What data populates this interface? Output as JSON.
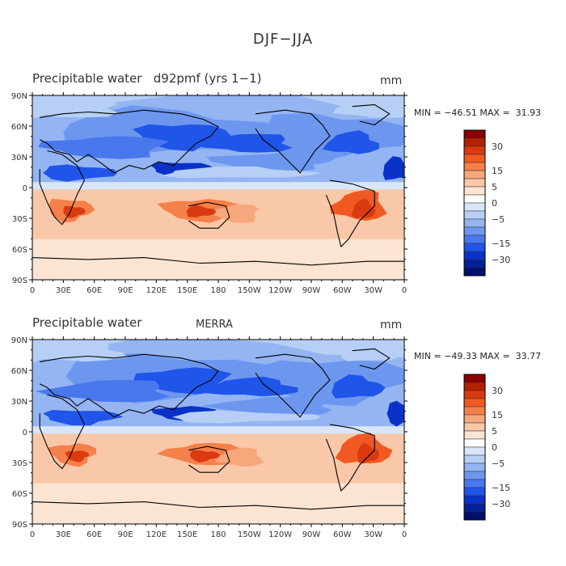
{
  "title": "DJF−JJA",
  "lat_labels": [
    "90N",
    "60N",
    "30N",
    "0",
    "30S",
    "60S",
    "90S"
  ],
  "lon_labels": [
    "0",
    "30E",
    "60E",
    "90E",
    "120E",
    "150E",
    "180",
    "150W",
    "120W",
    "90W",
    "60W",
    "30W",
    "0"
  ],
  "colorbar": {
    "labels": [
      "30",
      "15",
      "5",
      "0",
      "−5",
      "−15",
      "−30"
    ],
    "colors": [
      "#8b0000",
      "#b22200",
      "#d93a10",
      "#f05a22",
      "#f5804a",
      "#f7a77c",
      "#f9c8a8",
      "#fbe4d2",
      "#ffffff",
      "#d8e6f8",
      "#b7cff5",
      "#94b5f2",
      "#6d97ef",
      "#4878ec",
      "#1f55e8",
      "#0a32c8",
      "#041f9a",
      "#000f6e"
    ]
  },
  "panels": [
    {
      "title": "Precipitable water   d92pmf (yrs 1−1)",
      "center_label": "",
      "units": "mm",
      "min_label": "MIN =",
      "min_value": "−46.51",
      "max_label": "MAX =",
      "max_value": "31.93"
    },
    {
      "title": "Precipitable water",
      "center_label": "MERRA",
      "units": "mm",
      "min_label": "MIN =",
      "min_value": "−49.33",
      "max_label": "MAX =",
      "max_value": "33.77"
    }
  ]
}
